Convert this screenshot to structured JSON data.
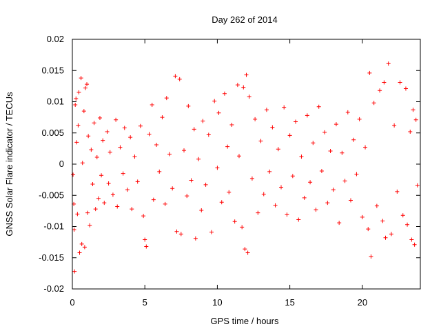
{
  "chart_data": {
    "type": "scatter",
    "title": "Day 262 of 2014",
    "xlabel": "GPS time / hours",
    "ylabel": "GNSS Solar Flare indicator / TECUs",
    "xlim": [
      0,
      24
    ],
    "ylim": [
      -0.02,
      0.02
    ],
    "xticks": [
      0,
      5,
      10,
      15,
      20
    ],
    "xtick_labels": [
      "0",
      "5",
      "10",
      "15",
      "20"
    ],
    "yticks": [
      -0.02,
      -0.015,
      -0.01,
      -0.005,
      0,
      0.005,
      0.01,
      0.015,
      0.02
    ],
    "ytick_labels": [
      "-0.02",
      "-0.015",
      "-0.01",
      "-0.005",
      "0",
      "0.005",
      "0.01",
      "0.015",
      "0.02"
    ],
    "grid": false,
    "legend": "none",
    "marker": "plus",
    "color": "#ff0000",
    "series": [
      {
        "points": [
          [
            0.05,
            -0.0017
          ],
          [
            0.1,
            -0.0064
          ],
          [
            0.12,
            -0.0105
          ],
          [
            0.15,
            -0.0172
          ],
          [
            0.2,
            0.0095
          ],
          [
            0.25,
            0.0105
          ],
          [
            0.3,
            0.0035
          ],
          [
            0.35,
            -0.008
          ],
          [
            0.4,
            0.0062
          ],
          [
            0.45,
            0.0115
          ],
          [
            0.5,
            -0.0142
          ],
          [
            0.6,
            0.0138
          ],
          [
            0.65,
            -0.0128
          ],
          [
            0.7,
            0.0002
          ],
          [
            0.8,
            0.0085
          ],
          [
            0.85,
            -0.0133
          ],
          [
            0.9,
            0.0122
          ],
          [
            1.0,
            0.0128
          ],
          [
            1.05,
            -0.0078
          ],
          [
            1.1,
            0.0045
          ],
          [
            1.2,
            -0.0098
          ],
          [
            1.3,
            0.0023
          ],
          [
            1.4,
            -0.0032
          ],
          [
            1.5,
            0.0066
          ],
          [
            1.6,
            -0.0072
          ],
          [
            1.7,
            0.0011
          ],
          [
            1.8,
            -0.0055
          ],
          [
            1.9,
            0.0074
          ],
          [
            2.0,
            -0.0018
          ],
          [
            2.1,
            0.0038
          ],
          [
            2.2,
            -0.0062
          ],
          [
            2.4,
            0.0052
          ],
          [
            2.5,
            -0.0031
          ],
          [
            2.6,
            0.0019
          ],
          [
            2.8,
            -0.0049
          ],
          [
            3.0,
            0.0071
          ],
          [
            3.1,
            -0.0068
          ],
          [
            3.3,
            0.0027
          ],
          [
            3.5,
            -0.0015
          ],
          [
            3.6,
            0.0058
          ],
          [
            3.8,
            -0.0041
          ],
          [
            4.0,
            0.0043
          ],
          [
            4.1,
            -0.0072
          ],
          [
            4.3,
            0.0012
          ],
          [
            4.5,
            -0.0028
          ],
          [
            4.7,
            0.0061
          ],
          [
            4.9,
            -0.0083
          ],
          [
            5.0,
            -0.0121
          ],
          [
            5.1,
            -0.0132
          ],
          [
            5.3,
            0.0048
          ],
          [
            5.5,
            0.0095
          ],
          [
            5.6,
            -0.0057
          ],
          [
            5.8,
            0.0031
          ],
          [
            6.0,
            -0.0012
          ],
          [
            6.2,
            0.0075
          ],
          [
            6.4,
            -0.0064
          ],
          [
            6.5,
            0.0106
          ],
          [
            6.7,
            0.0016
          ],
          [
            6.9,
            -0.0039
          ],
          [
            7.1,
            0.0141
          ],
          [
            7.2,
            -0.0108
          ],
          [
            7.4,
            0.0136
          ],
          [
            7.5,
            -0.0112
          ],
          [
            7.7,
            0.0022
          ],
          [
            7.9,
            -0.0051
          ],
          [
            8.0,
            0.0093
          ],
          [
            8.2,
            -0.0026
          ],
          [
            8.4,
            0.0056
          ],
          [
            8.5,
            -0.0119
          ],
          [
            8.7,
            0.0008
          ],
          [
            8.9,
            -0.0074
          ],
          [
            9.0,
            0.0069
          ],
          [
            9.2,
            -0.0033
          ],
          [
            9.4,
            0.0047
          ],
          [
            9.6,
            -0.0109
          ],
          [
            9.8,
            0.0101
          ],
          [
            10.0,
            -0.0006
          ],
          [
            10.1,
            0.0082
          ],
          [
            10.3,
            -0.0061
          ],
          [
            10.5,
            0.0113
          ],
          [
            10.7,
            0.0028
          ],
          [
            10.8,
            -0.0045
          ],
          [
            11.0,
            0.0063
          ],
          [
            11.2,
            -0.0092
          ],
          [
            11.4,
            0.0127
          ],
          [
            11.5,
            0.0013
          ],
          [
            11.7,
            -0.0101
          ],
          [
            11.8,
            0.0123
          ],
          [
            11.9,
            -0.0136
          ],
          [
            12.0,
            0.0143
          ],
          [
            12.1,
            -0.0142
          ],
          [
            12.2,
            0.0108
          ],
          [
            12.4,
            -0.0023
          ],
          [
            12.6,
            0.0072
          ],
          [
            12.8,
            -0.0078
          ],
          [
            13.0,
            0.0037
          ],
          [
            13.2,
            -0.0048
          ],
          [
            13.4,
            0.0087
          ],
          [
            13.6,
            -0.0012
          ],
          [
            13.8,
            0.0059
          ],
          [
            14.0,
            -0.0066
          ],
          [
            14.2,
            0.0024
          ],
          [
            14.4,
            -0.0037
          ],
          [
            14.6,
            0.0091
          ],
          [
            14.8,
            -0.0081
          ],
          [
            15.0,
            0.0046
          ],
          [
            15.2,
            -0.0019
          ],
          [
            15.4,
            0.0068
          ],
          [
            15.6,
            -0.0089
          ],
          [
            15.8,
            0.0012
          ],
          [
            16.0,
            -0.0054
          ],
          [
            16.2,
            0.0078
          ],
          [
            16.4,
            -0.0029
          ],
          [
            16.6,
            0.0034
          ],
          [
            16.8,
            -0.0073
          ],
          [
            17.0,
            0.0092
          ],
          [
            17.2,
            -0.0011
          ],
          [
            17.4,
            0.0051
          ],
          [
            17.6,
            -0.0062
          ],
          [
            17.8,
            0.0021
          ],
          [
            18.0,
            -0.0041
          ],
          [
            18.2,
            0.0064
          ],
          [
            18.4,
            -0.0094
          ],
          [
            18.6,
            0.0018
          ],
          [
            18.8,
            -0.0027
          ],
          [
            19.0,
            0.0083
          ],
          [
            19.2,
            -0.0058
          ],
          [
            19.4,
            0.0039
          ],
          [
            19.6,
            -0.0016
          ],
          [
            19.8,
            0.0072
          ],
          [
            20.0,
            -0.0085
          ],
          [
            20.2,
            0.0027
          ],
          [
            20.4,
            -0.0104
          ],
          [
            20.5,
            0.0146
          ],
          [
            20.6,
            -0.0148
          ],
          [
            20.8,
            0.0098
          ],
          [
            21.0,
            -0.0067
          ],
          [
            21.2,
            0.0118
          ],
          [
            21.4,
            -0.0091
          ],
          [
            21.5,
            0.0131
          ],
          [
            21.6,
            -0.0118
          ],
          [
            21.8,
            0.0161
          ],
          [
            22.0,
            -0.0112
          ],
          [
            22.2,
            0.0062
          ],
          [
            22.4,
            -0.0044
          ],
          [
            22.6,
            0.0131
          ],
          [
            22.8,
            -0.0082
          ],
          [
            23.0,
            0.0121
          ],
          [
            23.1,
            -0.0097
          ],
          [
            23.3,
            0.0052
          ],
          [
            23.4,
            -0.0121
          ],
          [
            23.5,
            0.0087
          ],
          [
            23.6,
            -0.0129
          ],
          [
            23.7,
            0.0071
          ],
          [
            23.8,
            -0.0034
          ]
        ]
      }
    ]
  }
}
